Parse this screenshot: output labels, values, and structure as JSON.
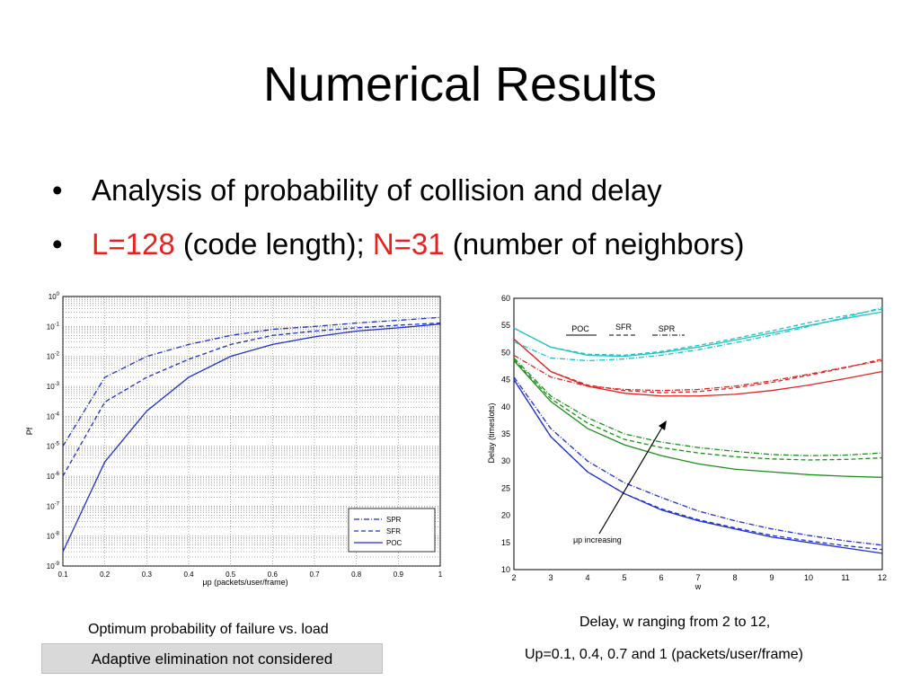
{
  "slide": {
    "title": "Numerical Results",
    "bullets": [
      {
        "parts": [
          {
            "text": "Analysis of probability of collision and delay",
            "color": "#000000"
          }
        ]
      },
      {
        "parts": [
          {
            "text": "L=128",
            "color": "#e8211c"
          },
          {
            "text": " (code length); ",
            "color": "#000000"
          },
          {
            "text": "N=31",
            "color": "#e8211c"
          },
          {
            "text": " (number of neighbors)",
            "color": "#000000"
          }
        ]
      }
    ],
    "left_caption": "Optimum probability of failure vs. load",
    "right_caption_1": "Delay, w ranging from 2 to 12,",
    "right_caption_2": "Up=0.1, 0.4, 0.7 and 1 (packets/user/frame)",
    "note": "Adaptive elimination not considered"
  },
  "chart_data": [
    {
      "type": "line",
      "scale": "log-y",
      "xlabel": "μp (packets/user/frame)",
      "ylabel": "Pf",
      "xlim": [
        0.1,
        1
      ],
      "ylim": [
        1e-09,
        1
      ],
      "grid": true,
      "legend": "bottom-right",
      "xticks": [
        "0.1",
        "0.2",
        "0.3",
        "0.4",
        "0.5",
        "0.6",
        "0.7",
        "0.8",
        "0.9",
        "1"
      ],
      "yticks": [
        "10^-9",
        "10^-8",
        "10^-7",
        "10^-6",
        "10^-5",
        "10^-4",
        "10^-3",
        "10^-2",
        "10^-1",
        "10^0"
      ],
      "x": [
        0.1,
        0.2,
        0.3,
        0.4,
        0.5,
        0.6,
        0.7,
        0.8,
        0.9,
        1.0
      ],
      "series": [
        {
          "name": "SPR",
          "dash": "dashdot",
          "color": "#1a2fd1",
          "values": [
            1e-05,
            0.002,
            0.01,
            0.025,
            0.05,
            0.08,
            0.1,
            0.13,
            0.16,
            0.2
          ]
        },
        {
          "name": "SFR",
          "dash": "dashed",
          "color": "#1a2fd1",
          "values": [
            1e-06,
            0.0003,
            0.002,
            0.008,
            0.025,
            0.05,
            0.07,
            0.09,
            0.11,
            0.13
          ]
        },
        {
          "name": "POC",
          "dash": "solid",
          "color": "#1a2fd1",
          "values": [
            3e-09,
            3e-06,
            0.00015,
            0.002,
            0.01,
            0.025,
            0.045,
            0.07,
            0.09,
            0.12
          ]
        }
      ]
    },
    {
      "type": "line",
      "xlabel": "w",
      "ylabel": "Delay (timeslots)",
      "xlim": [
        2,
        12
      ],
      "ylim": [
        10,
        60
      ],
      "xticks": [
        "2",
        "3",
        "4",
        "5",
        "6",
        "7",
        "8",
        "9",
        "10",
        "11",
        "12"
      ],
      "yticks": [
        "10",
        "15",
        "20",
        "25",
        "30",
        "35",
        "40",
        "45",
        "50",
        "55",
        "60"
      ],
      "legend_labels": [
        "POC",
        "SFR",
        "SPR"
      ],
      "annotation": "μp increasing",
      "x": [
        2,
        3,
        4,
        5,
        6,
        7,
        8,
        9,
        10,
        11,
        12
      ],
      "series": [
        {
          "load": 0.1,
          "line": "POC",
          "dash": "solid",
          "color": "#1e2fd3",
          "values": [
            45,
            34.5,
            28,
            24,
            21,
            19,
            17.5,
            16,
            15,
            14,
            13
          ]
        },
        {
          "load": 0.1,
          "line": "SFR",
          "dash": "dashed",
          "color": "#1e2fd3",
          "values": [
            45,
            34.5,
            28,
            24,
            21.2,
            19.2,
            17.7,
            16.3,
            15.3,
            14.4,
            13.7
          ]
        },
        {
          "load": 0.1,
          "line": "SPR",
          "dash": "dashdot",
          "color": "#1e2fd3",
          "values": [
            45.5,
            36,
            30,
            26,
            23.3,
            20.8,
            19,
            17.5,
            16.3,
            15.3,
            14.5
          ]
        },
        {
          "load": 0.4,
          "line": "POC",
          "dash": "solid",
          "color": "#1a8f1a",
          "values": [
            48.5,
            41,
            36,
            33,
            31,
            29.5,
            28.5,
            28,
            27.5,
            27.2,
            27
          ]
        },
        {
          "load": 0.4,
          "line": "SFR",
          "dash": "dashed",
          "color": "#1a8f1a",
          "values": [
            48.7,
            41.5,
            37,
            34,
            32.5,
            31.5,
            30.8,
            30.4,
            30.2,
            30.3,
            30.6
          ]
        },
        {
          "load": 0.4,
          "line": "SPR",
          "dash": "dashdot",
          "color": "#1a8f1a",
          "values": [
            49,
            42,
            38,
            35,
            33.5,
            32.5,
            31.8,
            31.2,
            31,
            31.1,
            31.5
          ]
        },
        {
          "load": 0.7,
          "line": "POC",
          "dash": "solid",
          "color": "#e0231f",
          "values": [
            52.5,
            46.5,
            43.8,
            42.5,
            42,
            42,
            42.3,
            43,
            44,
            45.2,
            46.5
          ]
        },
        {
          "load": 0.7,
          "line": "SFR",
          "dash": "dashed",
          "color": "#e0231f",
          "values": [
            52.5,
            46.5,
            44,
            43,
            42.6,
            42.8,
            43.5,
            44.5,
            45.8,
            47.2,
            48.8
          ]
        },
        {
          "load": 0.7,
          "line": "SPR",
          "dash": "dashdot",
          "color": "#e0231f",
          "values": [
            49.5,
            45.5,
            43.8,
            43.2,
            43,
            43.2,
            43.8,
            44.8,
            46,
            47.3,
            48.5
          ]
        },
        {
          "load": 1.0,
          "line": "POC",
          "dash": "solid",
          "color": "#1cc4c4",
          "values": [
            54.5,
            51,
            49.5,
            49.3,
            50,
            51,
            52.3,
            53.6,
            55,
            56.3,
            57.5
          ]
        },
        {
          "load": 1.0,
          "line": "SFR",
          "dash": "dashed",
          "color": "#1cc4c4",
          "values": [
            54.5,
            51,
            49.7,
            49.5,
            50.2,
            51.3,
            52.6,
            54,
            55.5,
            56.8,
            58
          ]
        },
        {
          "load": 1.0,
          "line": "SPR",
          "dash": "dashdot",
          "color": "#1cc4c4",
          "values": [
            52,
            49,
            48.5,
            48.8,
            49.5,
            50.5,
            51.8,
            53.2,
            54.8,
            56.5,
            58.3
          ]
        }
      ]
    }
  ]
}
